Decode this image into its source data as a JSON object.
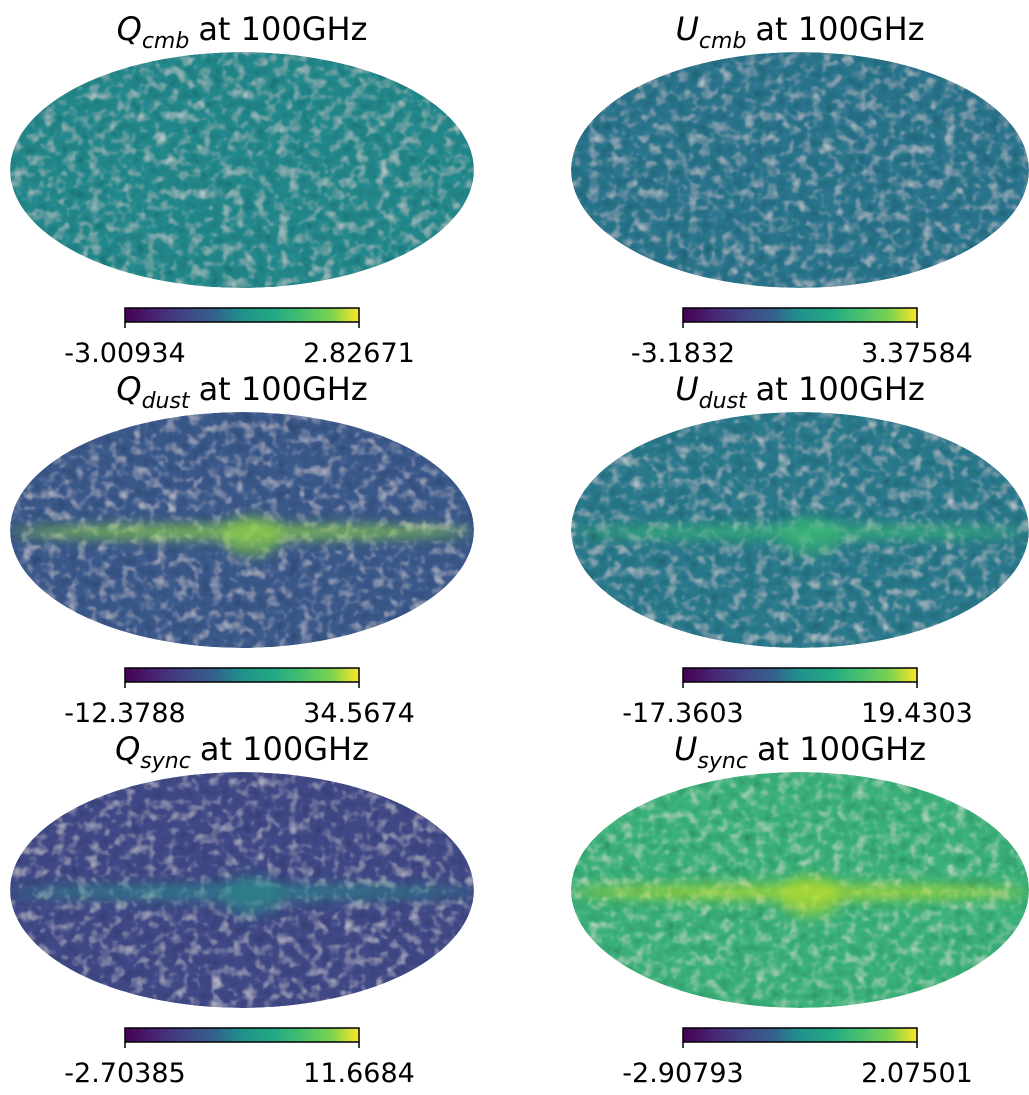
{
  "chart_data": [
    {
      "type": "healpix_map",
      "title": {
        "symbol": "Q",
        "subscript": "cmb",
        "suffix": "at 100GHz"
      },
      "color": "#238a8d",
      "colormap": "viridis",
      "clim": [
        -3.00934,
        2.82671
      ],
      "cticks": [
        -3.00934,
        2.82671
      ]
    },
    {
      "type": "healpix_map",
      "title": {
        "symbol": "U",
        "subscript": "cmb",
        "suffix": "at 100GHz"
      },
      "color": "#2a768e",
      "colormap": "viridis",
      "clim": [
        -3.1832,
        3.37584
      ],
      "cticks": [
        -3.1832,
        3.37584
      ]
    },
    {
      "type": "healpix_map",
      "title": {
        "symbol": "Q",
        "subscript": "dust",
        "suffix": "at 100GHz"
      },
      "color": "#3b5a8c",
      "colormap": "viridis",
      "clim": [
        -12.3788,
        34.5674
      ],
      "cticks": [
        -12.3788,
        34.5674
      ],
      "plane_color": "#8fd744"
    },
    {
      "type": "healpix_map",
      "title": {
        "symbol": "U",
        "subscript": "dust",
        "suffix": "at 100GHz"
      },
      "color": "#2a7b8e",
      "colormap": "viridis",
      "clim": [
        -17.3603,
        19.4303
      ],
      "cticks": [
        -17.3603,
        19.4303
      ],
      "plane_color": "#3aba76"
    },
    {
      "type": "healpix_map",
      "title": {
        "symbol": "Q",
        "subscript": "sync",
        "suffix": "at 100GHz"
      },
      "color": "#414a88",
      "colormap": "viridis",
      "clim": [
        -2.70385,
        11.6684
      ],
      "cticks": [
        -2.70385,
        11.6684
      ],
      "plane_color": "#2a8a8c"
    },
    {
      "type": "healpix_map",
      "title": {
        "symbol": "U",
        "subscript": "sync",
        "suffix": "at 100GHz"
      },
      "color": "#3bb27b",
      "colormap": "viridis",
      "clim": [
        -2.90793,
        2.07501
      ],
      "cticks": [
        -2.90793,
        2.07501
      ],
      "plane_color": "#b8de29"
    }
  ]
}
